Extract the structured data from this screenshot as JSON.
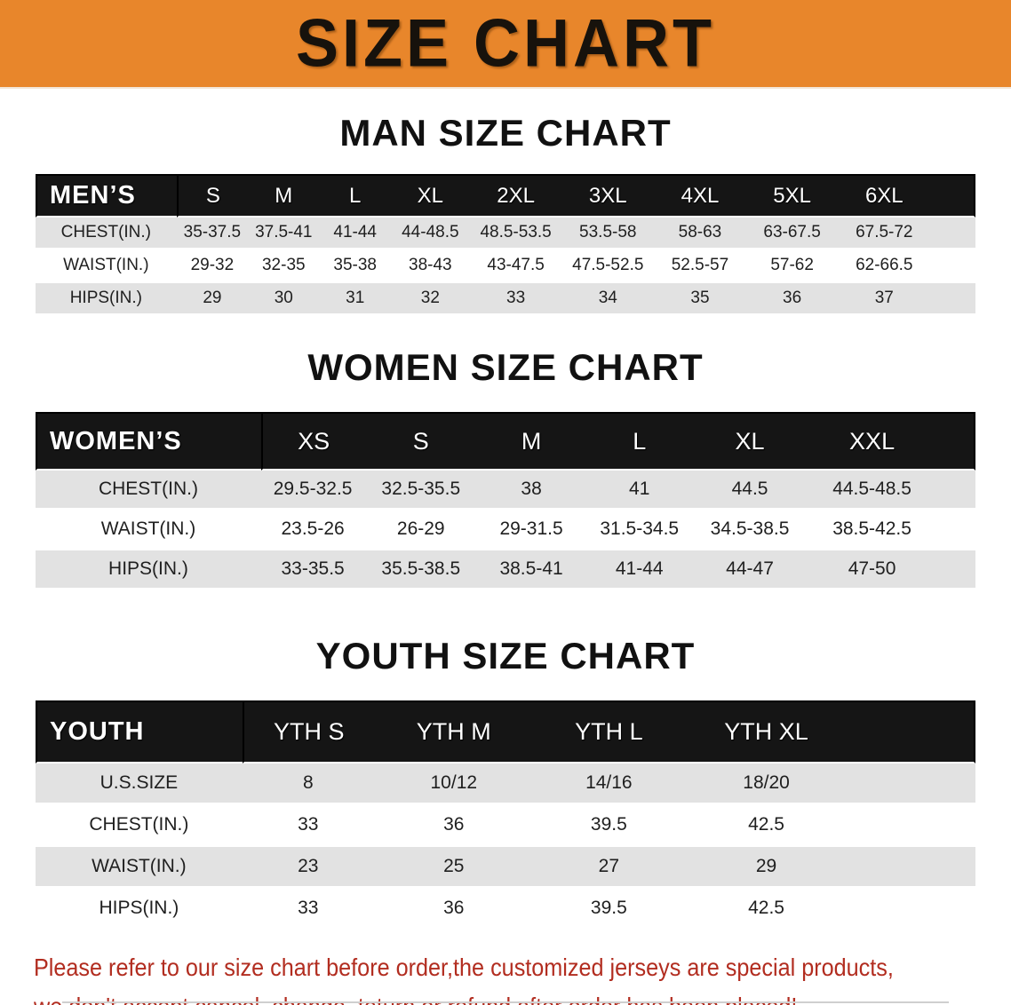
{
  "banner": {
    "title": "SIZE CHART",
    "bg_color": "#E8862B",
    "text_color": "#17120C"
  },
  "sections": [
    {
      "heading": "MAN SIZE CHART",
      "corner_label": "MEN’S",
      "columns": [
        "S",
        "M",
        "L",
        "XL",
        "2XL",
        "3XL",
        "4XL",
        "5XL",
        "6XL"
      ],
      "rows": [
        {
          "label": "CHEST(IN.)",
          "values": [
            "35-37.5",
            "37.5-41",
            "41-44",
            "44-48.5",
            "48.5-53.5",
            "53.5-58",
            "58-63",
            "63-67.5",
            "67.5-72"
          ]
        },
        {
          "label": "WAIST(IN.)",
          "values": [
            "29-32",
            "32-35",
            "35-38",
            "38-43",
            "43-47.5",
            "47.5-52.5",
            "52.5-57",
            "57-62",
            "62-66.5"
          ]
        },
        {
          "label": "HIPS(IN.)",
          "values": [
            "29",
            "30",
            "31",
            "32",
            "33",
            "34",
            "35",
            "36",
            "37"
          ]
        }
      ]
    },
    {
      "heading": "WOMEN SIZE CHART",
      "corner_label": "WOMEN’S",
      "columns": [
        "XS",
        "S",
        "M",
        "L",
        "XL",
        "XXL"
      ],
      "rows": [
        {
          "label": "CHEST(IN.)",
          "values": [
            "29.5-32.5",
            "32.5-35.5",
            "38",
            "41",
            "44.5",
            "44.5-48.5"
          ]
        },
        {
          "label": "WAIST(IN.)",
          "values": [
            "23.5-26",
            "26-29",
            "29-31.5",
            "31.5-34.5",
            "34.5-38.5",
            "38.5-42.5"
          ]
        },
        {
          "label": "HIPS(IN.)",
          "values": [
            "33-35.5",
            "35.5-38.5",
            "38.5-41",
            "41-44",
            "44-47",
            "47-50"
          ]
        }
      ]
    },
    {
      "heading": "YOUTH SIZE CHART",
      "corner_label": "YOUTH",
      "columns": [
        "YTH S",
        "YTH M",
        "YTH L",
        "YTH XL"
      ],
      "rows": [
        {
          "label": "U.S.SIZE",
          "values": [
            "8",
            "10/12",
            "14/16",
            "18/20"
          ]
        },
        {
          "label": "CHEST(IN.)",
          "values": [
            "33",
            "36",
            "39.5",
            "42.5"
          ]
        },
        {
          "label": "WAIST(IN.)",
          "values": [
            "23",
            "25",
            "27",
            "29"
          ]
        },
        {
          "label": "HIPS(IN.)",
          "values": [
            "33",
            "36",
            "39.5",
            "42.5"
          ]
        }
      ]
    }
  ],
  "disclaimer": {
    "line1": "Please refer to our size chart before order,the customized jerseys are special products,",
    "line2": "we don't accept cancel, change, teturn or refund after order has been placed!",
    "color": "#B22D20"
  }
}
